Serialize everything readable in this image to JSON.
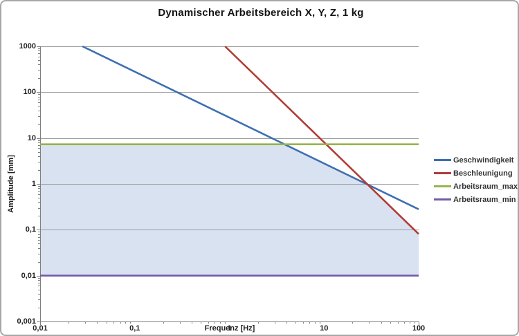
{
  "chart": {
    "title": "Dynamischer Arbeitsbereich X, Y, Z, 1 kg",
    "x_axis": {
      "title": "Frequenz [Hz]",
      "ticks": [
        {
          "v": 0.01,
          "label": "0,01"
        },
        {
          "v": 0.1,
          "label": "0,1"
        },
        {
          "v": 1,
          "label": "1"
        },
        {
          "v": 10,
          "label": "10"
        },
        {
          "v": 100,
          "label": "100"
        }
      ]
    },
    "y_axis": {
      "title": "Amplitude [mm]",
      "ticks": [
        {
          "v": 1000,
          "label": "1000"
        },
        {
          "v": 100,
          "label": "100"
        },
        {
          "v": 10,
          "label": "10"
        },
        {
          "v": 1,
          "label": "1"
        },
        {
          "v": 0.1,
          "label": "0,1"
        },
        {
          "v": 0.01,
          "label": "0,01"
        },
        {
          "v": 0.001,
          "label": "0,001"
        }
      ]
    },
    "colors": {
      "grid": "#9b9b9b",
      "axis": "#7f7f7f",
      "text": "#1f1f1f",
      "border": "#a6a6a6",
      "fill": "#d8e2f0"
    }
  },
  "chart_data": {
    "type": "line",
    "title": "Dynamischer Arbeitsbereich X, Y, Z, 1 kg",
    "xlabel": "Frequenz [Hz]",
    "ylabel": "Amplitude [mm]",
    "x_scale": "log",
    "y_scale": "log",
    "xlim": [
      0.01,
      100
    ],
    "ylim": [
      0.001,
      1000
    ],
    "grid": "horizontal-only",
    "legend_position": "right",
    "series": [
      {
        "name": "Geschwindigkeit",
        "color": "#3e6fb0",
        "points": [
          [
            0.028,
            1000
          ],
          [
            100,
            0.28
          ]
        ],
        "slope_decades": -1
      },
      {
        "name": "Beschleunigung",
        "color": "#b13c35",
        "points": [
          [
            0.9,
            1000
          ],
          [
            100,
            0.081
          ]
        ],
        "slope_decades": -2
      },
      {
        "name": "Arbeitsraum_max",
        "color": "#95b54a",
        "points": [
          [
            0.01,
            7.3
          ],
          [
            100,
            7.3
          ]
        ],
        "slope_decades": 0
      },
      {
        "name": "Arbeitsraum_min",
        "color": "#7459a4",
        "points": [
          [
            0.01,
            0.01
          ],
          [
            100,
            0.01
          ]
        ],
        "slope_decades": 0
      }
    ],
    "shaded_region": {
      "color": "#d8e2f0",
      "lower_bound_mm": 0.01,
      "upper_bound": "min(Geschwindigkeit, Beschleunigung, Arbeitsraum_max)",
      "description": "Usable dynamic working range between Arbeitsraum_min and the limiting curves"
    }
  }
}
